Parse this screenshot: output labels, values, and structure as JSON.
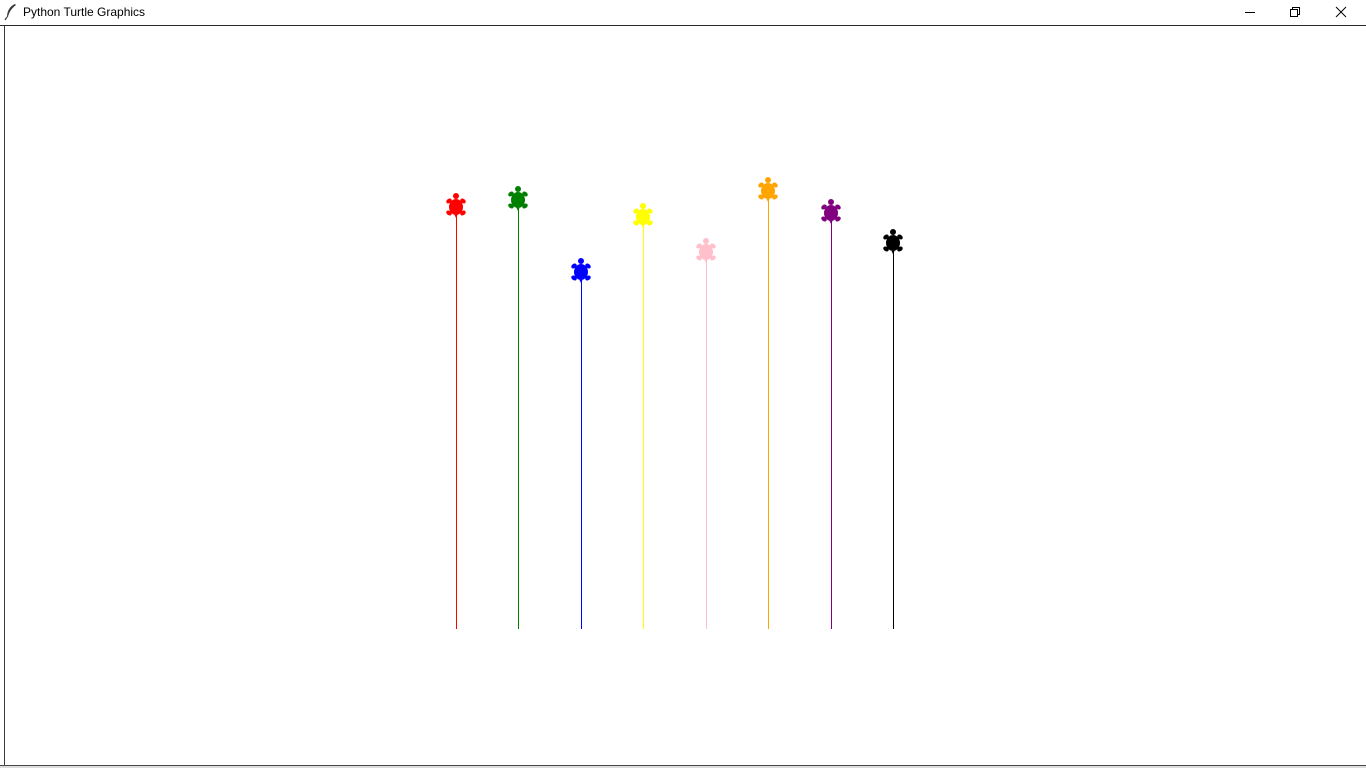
{
  "window": {
    "title": "Python Turtle Graphics",
    "icon": "feather-icon",
    "controls": {
      "minimize_icon": "minimize-icon",
      "restore_icon": "restore-icon",
      "close_icon": "close-icon"
    }
  },
  "turtles": [
    {
      "color": "#ff0000"
    },
    {
      "color": "#008000"
    },
    {
      "color": "#0000ff"
    },
    {
      "color": "#ffff00"
    },
    {
      "color": "#ffc0cb"
    },
    {
      "color": "#ffa500"
    },
    {
      "color": "#800080"
    },
    {
      "color": "#000000"
    }
  ]
}
